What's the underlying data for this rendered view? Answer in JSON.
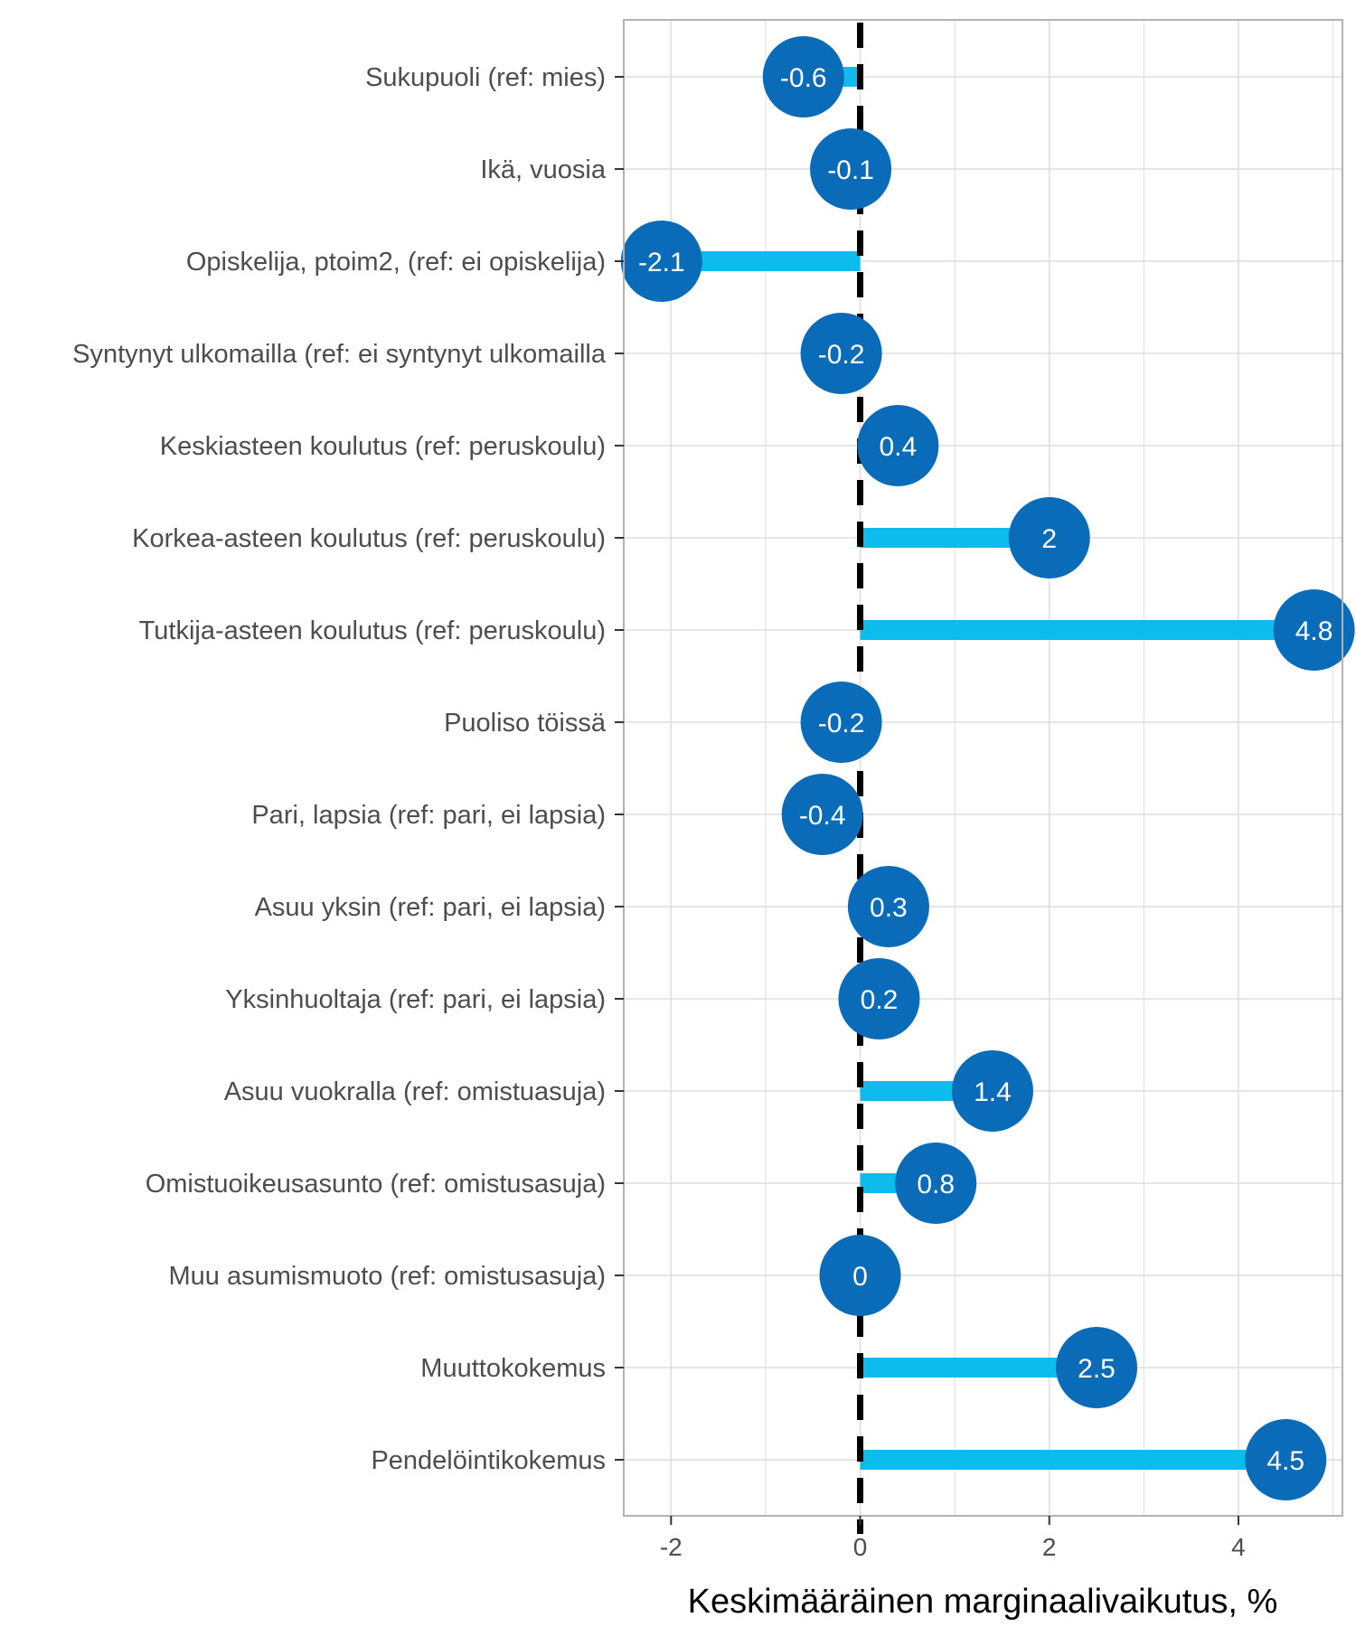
{
  "chart_data": {
    "type": "lollipop",
    "xlabel": "Keskimääräinen marginaalivaikutus, %",
    "ylabel": "",
    "xlim": [
      -2.5,
      5.1
    ],
    "x_ticks": [
      -2,
      0,
      2,
      4
    ],
    "x_tick_labels": [
      "-2",
      "0",
      "2",
      "4"
    ],
    "grid": true,
    "reference_line": {
      "x": 0,
      "style": "dashed"
    },
    "colors": {
      "stem": "#0dbcec",
      "point": "#0a6cb8",
      "reference": "#000000",
      "grid": "#dedede",
      "panel_border": "#b3b3b3"
    },
    "categories": [
      "Sukupuoli (ref: mies)",
      "Ikä, vuosia",
      "Opiskelija, ptoim2, (ref: ei opiskelija)",
      "Syntynyt ulkomailla (ref: ei syntynyt ulkomailla",
      "Keskiasteen koulutus (ref: peruskoulu)",
      "Korkea-asteen koulutus (ref: peruskoulu)",
      "Tutkija-asteen koulutus (ref: peruskoulu)",
      "Puoliso töissä",
      "Pari, lapsia (ref: pari, ei lapsia)",
      "Asuu yksin (ref: pari, ei lapsia)",
      "Yksinhuoltaja (ref: pari, ei lapsia)",
      "Asuu vuokralla (ref: omistuasuja)",
      "Omistuoikeusasunto (ref: omistusasuja)",
      "Muu asumismuoto (ref: omistusasuja)",
      "Muuttokokemus",
      "Pendelöintikokemus"
    ],
    "values": [
      -0.6,
      -0.1,
      -2.1,
      -0.2,
      0.4,
      2,
      4.8,
      -0.2,
      -0.4,
      0.3,
      0.2,
      1.4,
      0.8,
      0,
      2.5,
      4.5
    ],
    "value_labels": [
      "-0.6",
      "-0.1",
      "-2.1",
      "-0.2",
      "0.4",
      "2",
      "4.8",
      "-0.2",
      "-0.4",
      "0.3",
      "0.2",
      "1.4",
      "0.8",
      "0",
      "2.5",
      "4.5"
    ]
  }
}
